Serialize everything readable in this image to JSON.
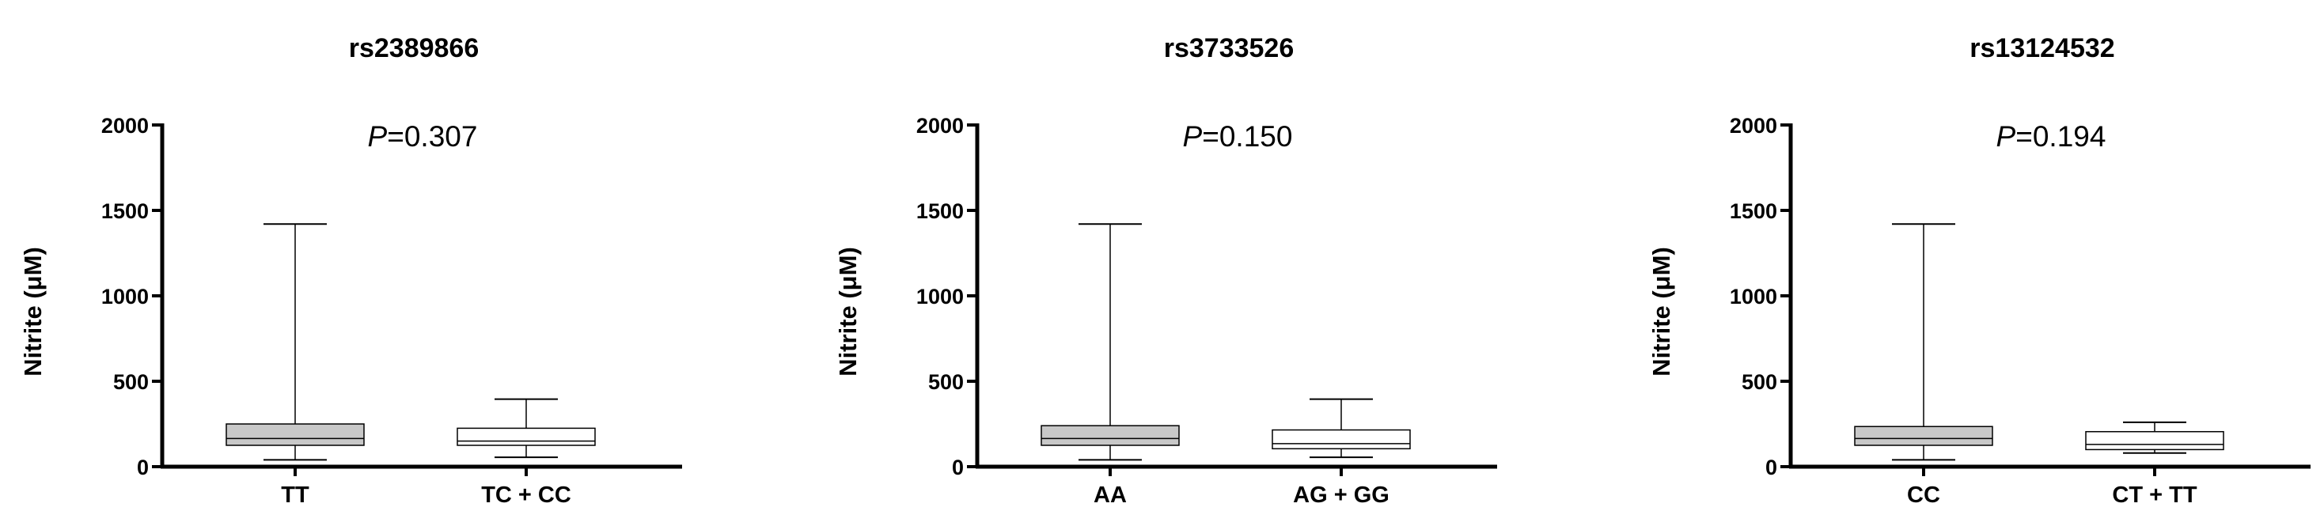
{
  "chart_data": [
    {
      "type": "boxplot",
      "title": "rs2389866",
      "ylabel": "Nitrite (μM)",
      "ylim": [
        0,
        2000
      ],
      "yticks": [
        0,
        500,
        1000,
        1500,
        2000
      ],
      "p_value": {
        "label": "P",
        "value": "0.307"
      },
      "categories": [
        "TT",
        "TC + CC"
      ],
      "boxes": [
        {
          "name": "TT",
          "min": 40,
          "q1": 125,
          "median": 165,
          "q3": 250,
          "max": 1420,
          "fill": "#c8c8c8"
        },
        {
          "name": "TC + CC",
          "min": 55,
          "q1": 125,
          "median": 150,
          "q3": 225,
          "max": 395,
          "fill": "#ffffff"
        }
      ]
    },
    {
      "type": "boxplot",
      "title": "rs3733526",
      "ylabel": "Nitrite (μM)",
      "ylim": [
        0,
        2000
      ],
      "yticks": [
        0,
        500,
        1000,
        1500,
        2000
      ],
      "p_value": {
        "label": "P",
        "value": "0.150"
      },
      "categories": [
        "AA",
        "AG + GG"
      ],
      "boxes": [
        {
          "name": "AA",
          "min": 40,
          "q1": 125,
          "median": 165,
          "q3": 240,
          "max": 1420,
          "fill": "#c8c8c8"
        },
        {
          "name": "AG + GG",
          "min": 55,
          "q1": 105,
          "median": 135,
          "q3": 215,
          "max": 395,
          "fill": "#ffffff"
        }
      ]
    },
    {
      "type": "boxplot",
      "title": "rs13124532",
      "ylabel": "Nitrite (μM)",
      "ylim": [
        0,
        2000
      ],
      "yticks": [
        0,
        500,
        1000,
        1500,
        2000
      ],
      "p_value": {
        "label": "P",
        "value": "0.194"
      },
      "categories": [
        "CC",
        "CT + TT"
      ],
      "boxes": [
        {
          "name": "CC",
          "min": 40,
          "q1": 125,
          "median": 165,
          "q3": 235,
          "max": 1420,
          "fill": "#c8c8c8"
        },
        {
          "name": "CT + TT",
          "min": 80,
          "q1": 100,
          "median": 130,
          "q3": 205,
          "max": 260,
          "fill": "#ffffff"
        }
      ]
    }
  ]
}
